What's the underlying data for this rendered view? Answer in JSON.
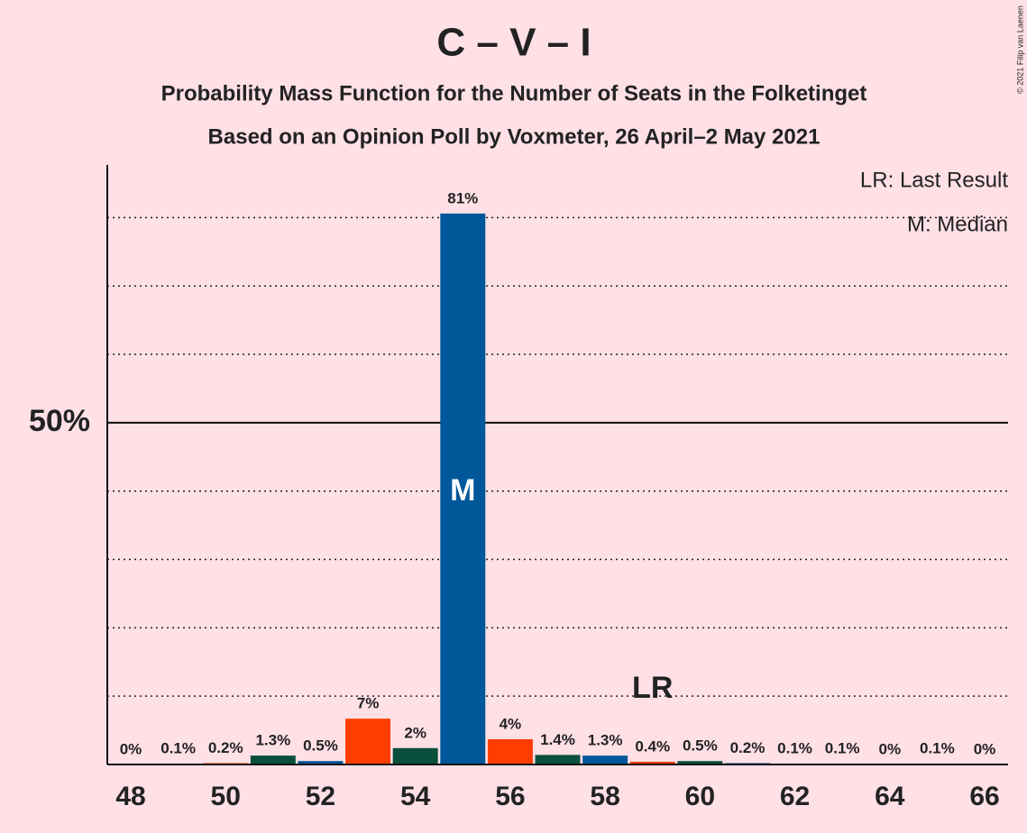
{
  "chart_data": {
    "type": "bar",
    "title": "C – V – I",
    "subtitle": "Probability Mass Function for the Number of Seats in the Folketinget",
    "subtitle2": "Based on an Opinion Poll by Voxmeter, 26 April–2 May 2021",
    "copyright": "© 2021 Filip van Laenen",
    "legend": [
      "LR: Last Result",
      "M: Median"
    ],
    "x": [
      48,
      49,
      50,
      51,
      52,
      53,
      54,
      55,
      56,
      57,
      58,
      59,
      60,
      61,
      62,
      63,
      64,
      65,
      66
    ],
    "values": [
      0,
      0.1,
      0.2,
      1.3,
      0.5,
      6.7,
      2.4,
      80.6,
      3.7,
      1.4,
      1.3,
      0.4,
      0.5,
      0.2,
      0.1,
      0.1,
      0,
      0.1,
      0
    ],
    "value_labels": [
      "0%",
      "0.1%",
      "0.2%",
      "1.3%",
      "0.5%",
      "7%",
      "2%",
      "81%",
      "4%",
      "1.4%",
      "1.3%",
      "0.4%",
      "0.5%",
      "0.2%",
      "0.1%",
      "0.1%",
      "0%",
      "0.1%",
      "0%"
    ],
    "colors": [
      "#0a4f3c",
      "#00579a",
      "#ff3d00",
      "#0a4f3c",
      "#00579a",
      "#ff3d00",
      "#0a4f3c",
      "#00579a",
      "#ff3d00",
      "#0a4f3c",
      "#00579a",
      "#ff3d00",
      "#0a4f3c",
      "#00579a",
      "#ff3d00",
      "#0a4f3c",
      "#00579a",
      "#ff3d00",
      "#0a4f3c"
    ],
    "xlim": [
      47.5,
      66.5
    ],
    "xticks": [
      48,
      50,
      52,
      54,
      56,
      58,
      60,
      62,
      64,
      66
    ],
    "ylim": [
      0,
      87.7
    ],
    "yticks": [
      {
        "value": 50,
        "label": "50%"
      }
    ],
    "minor_yticks": [
      10,
      20,
      30,
      40,
      60,
      70,
      80
    ],
    "annotations": [
      {
        "text": "M",
        "x": 55
      },
      {
        "text": "LR",
        "x": 59
      }
    ]
  }
}
